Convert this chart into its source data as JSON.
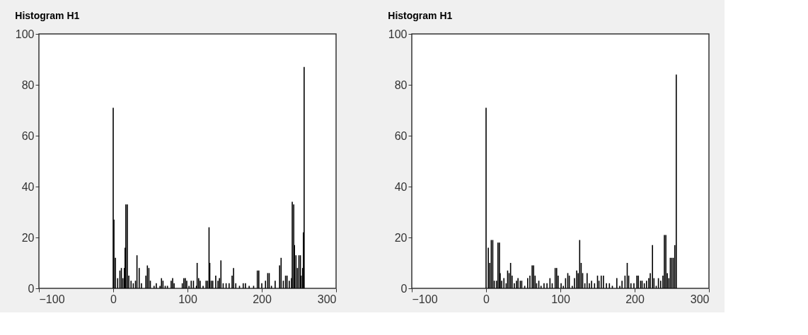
{
  "chart_data": [
    {
      "type": "bar",
      "title": "Histogram H1",
      "color": "#000000",
      "xlim": [
        -100,
        300
      ],
      "ylim": [
        0,
        100
      ],
      "xticks": [
        -100,
        0,
        100,
        200,
        300
      ],
      "yticks": [
        0,
        20,
        40,
        60,
        80,
        100
      ],
      "grid": false,
      "x": [
        0,
        1,
        3,
        6,
        9,
        11,
        13,
        15,
        16,
        17,
        19,
        21,
        24,
        27,
        30,
        32,
        35,
        38,
        44,
        46,
        48,
        50,
        55,
        58,
        63,
        65,
        67,
        70,
        73,
        78,
        80,
        82,
        93,
        95,
        97,
        99,
        102,
        105,
        108,
        112,
        113,
        115,
        117,
        121,
        125,
        127,
        129,
        130,
        132,
        134,
        138,
        141,
        143,
        145,
        148,
        152,
        156,
        160,
        162,
        165,
        170,
        175,
        178,
        183,
        189,
        194,
        196,
        200,
        205,
        208,
        210,
        213,
        218,
        224,
        226,
        229,
        232,
        234,
        237,
        240,
        241,
        243,
        244,
        246,
        248,
        250,
        252,
        253,
        255,
        256,
        257
      ],
      "values": [
        71,
        27,
        12,
        4,
        7,
        8,
        4,
        8,
        16,
        33,
        33,
        5,
        3,
        2,
        3,
        13,
        8,
        2,
        5,
        9,
        8,
        3,
        1,
        2,
        1,
        4,
        3,
        1,
        1,
        3,
        4,
        2,
        2,
        4,
        4,
        3,
        1,
        3,
        3,
        1,
        10,
        4,
        3,
        1,
        3,
        3,
        24,
        10,
        3,
        3,
        5,
        3,
        4,
        11,
        2,
        2,
        2,
        5,
        8,
        2,
        1,
        2,
        2,
        1,
        1,
        7,
        7,
        2,
        3,
        6,
        6,
        1,
        3,
        9,
        12,
        3,
        5,
        5,
        3,
        4,
        34,
        33,
        17,
        13,
        8,
        13,
        13,
        5,
        8,
        22,
        87
      ]
    },
    {
      "type": "bar",
      "title": "Histogram H1",
      "color": "#000000",
      "xlim": [
        -100,
        300
      ],
      "ylim": [
        0,
        100
      ],
      "xticks": [
        -100,
        0,
        100,
        200,
        300
      ],
      "yticks": [
        0,
        20,
        40,
        60,
        80,
        100
      ],
      "grid": false,
      "x": [
        0,
        3,
        5,
        7,
        9,
        11,
        14,
        16,
        18,
        19,
        21,
        24,
        27,
        29,
        31,
        33,
        35,
        38,
        41,
        43,
        46,
        48,
        52,
        56,
        59,
        62,
        64,
        66,
        68,
        71,
        74,
        78,
        82,
        86,
        89,
        93,
        95,
        97,
        101,
        104,
        107,
        110,
        112,
        116,
        119,
        122,
        124,
        126,
        128,
        130,
        133,
        136,
        139,
        142,
        146,
        150,
        152,
        155,
        158,
        162,
        166,
        170,
        176,
        180,
        183,
        187,
        190,
        192,
        195,
        199,
        203,
        205,
        208,
        210,
        213,
        216,
        219,
        221,
        224,
        226,
        229,
        232,
        235,
        238,
        240,
        242,
        244,
        246,
        248,
        250,
        252,
        254,
        256
      ],
      "values": [
        71,
        16,
        10,
        19,
        19,
        3,
        3,
        18,
        18,
        6,
        3,
        4,
        2,
        7,
        6,
        10,
        5,
        2,
        3,
        4,
        3,
        3,
        1,
        4,
        5,
        9,
        9,
        5,
        2,
        3,
        1,
        2,
        2,
        4,
        2,
        8,
        8,
        5,
        2,
        1,
        4,
        6,
        5,
        1,
        4,
        7,
        6,
        19,
        10,
        6,
        2,
        6,
        2,
        3,
        2,
        5,
        3,
        5,
        5,
        2,
        2,
        1,
        4,
        1,
        3,
        5,
        10,
        5,
        2,
        2,
        5,
        5,
        3,
        3,
        2,
        3,
        4,
        6,
        17,
        4,
        1,
        4,
        3,
        5,
        21,
        21,
        6,
        4,
        12,
        12,
        12,
        17,
        84
      ]
    }
  ]
}
